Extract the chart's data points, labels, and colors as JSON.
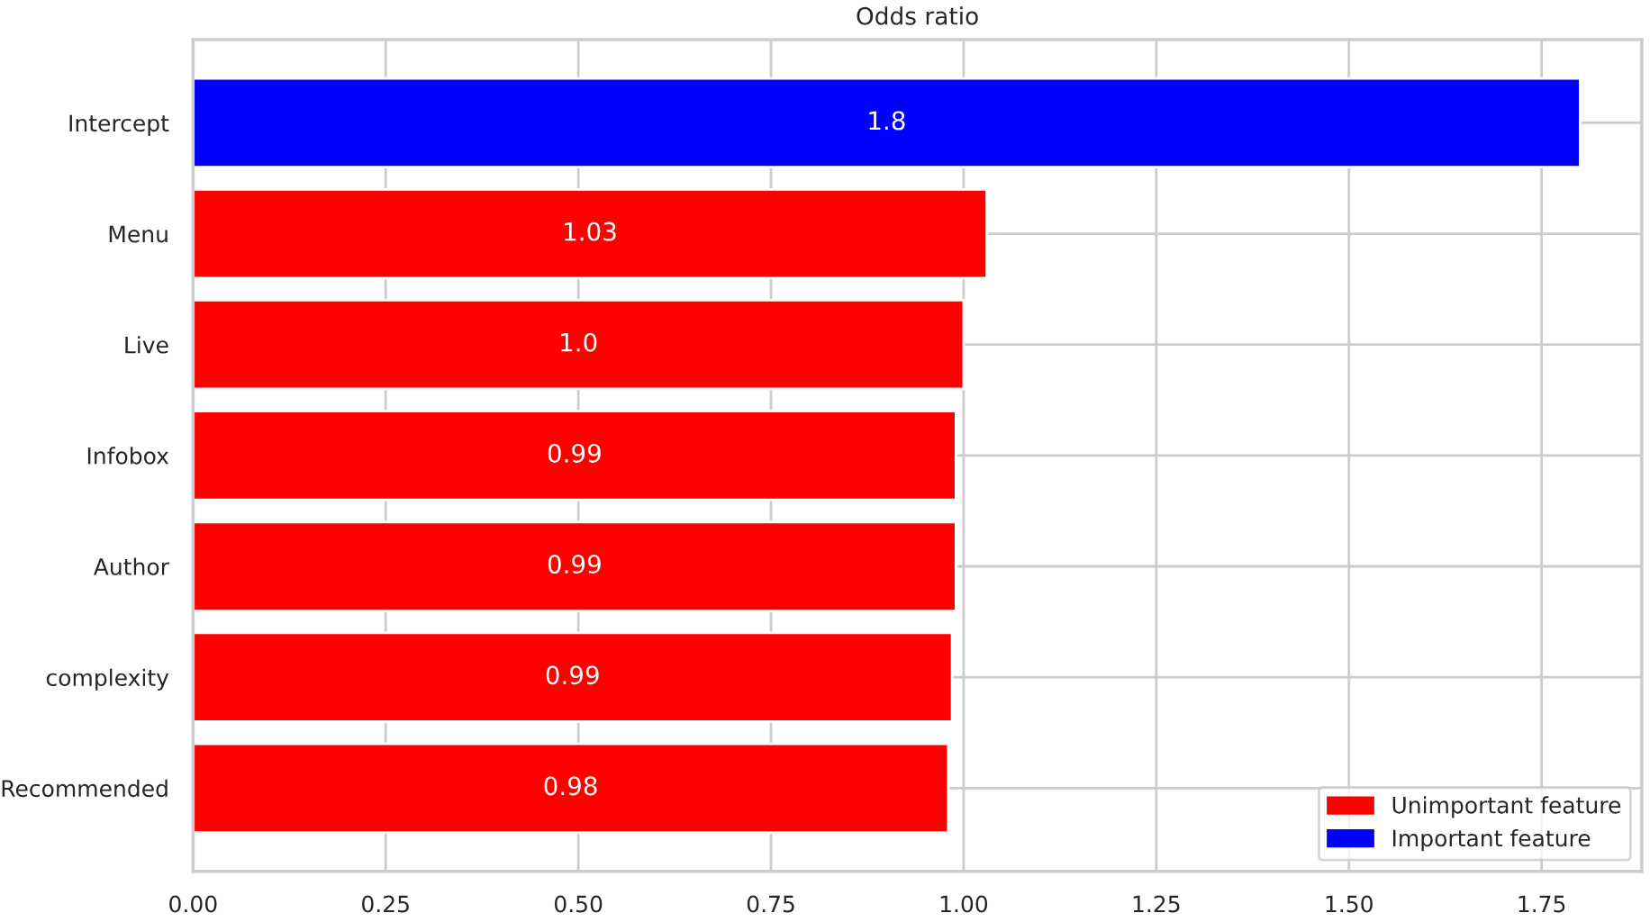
{
  "chart_data": {
    "type": "bar",
    "orientation": "horizontal",
    "title": "Odds ratio",
    "categories": [
      "Intercept",
      "Menu",
      "Live",
      "Infobox",
      "Author",
      "complexity",
      "Recommended"
    ],
    "series": [
      {
        "name": "Unimportant feature",
        "color": "#ff0000",
        "values": [
          null,
          1.03,
          1.0,
          0.99,
          0.99,
          0.985,
          0.98
        ],
        "value_labels": [
          null,
          "1.03",
          "1.0",
          "0.99",
          "0.99",
          "0.99",
          "0.98"
        ]
      },
      {
        "name": "Important feature",
        "color": "#0000ff",
        "values": [
          1.8,
          null,
          null,
          null,
          null,
          null,
          null
        ],
        "value_labels": [
          "1.8",
          null,
          null,
          null,
          null,
          null,
          null
        ]
      }
    ],
    "xlim": [
      0,
      1.88
    ],
    "xticks": [
      {
        "value": 0,
        "label": "0.00"
      },
      {
        "value": 0.25,
        "label": "0.25"
      },
      {
        "value": 0.5,
        "label": "0.50"
      },
      {
        "value": 0.75,
        "label": "0.75"
      },
      {
        "value": 1.0,
        "label": "1.00"
      },
      {
        "value": 1.25,
        "label": "1.25"
      },
      {
        "value": 1.5,
        "label": "1.50"
      },
      {
        "value": 1.75,
        "label": "1.75"
      }
    ],
    "grid": true,
    "legend": "bottom right"
  }
}
